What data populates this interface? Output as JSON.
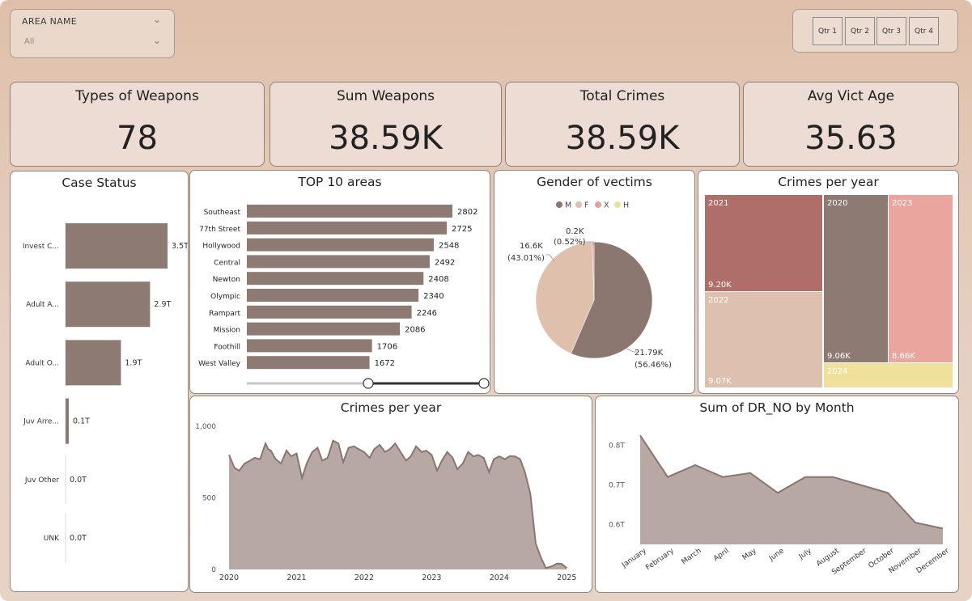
{
  "filter": {
    "label": "AREA NAME",
    "value": "All"
  },
  "quarters": [
    "Qtr 1",
    "Qtr 2",
    "Qtr 3",
    "Qtr 4"
  ],
  "kpis": [
    {
      "title": "Types of Weapons",
      "value": "78"
    },
    {
      "title": "Sum Weapons",
      "value": "38.59K"
    },
    {
      "title": "Total Crimes",
      "value": "38.59K"
    },
    {
      "title": "Avg Vict Age",
      "value": "35.63"
    }
  ],
  "case_status": {
    "title": "Case Status",
    "labels": [
      "Invest C...",
      "Adult A...",
      "Adult O...",
      "Juv Arre...",
      "Juv Other",
      "UNK"
    ],
    "value_labels": [
      "3.5T",
      "2.9T",
      "1.9T",
      "0.1T",
      "0.0T",
      "0.0T"
    ]
  },
  "top_areas": {
    "title": "TOP 10 areas"
  },
  "gender": {
    "title": "Gender of vectims",
    "legend": [
      "M",
      "F",
      "X",
      "H"
    ],
    "legend_colors": [
      "#8b7770",
      "#dec0ac",
      "#e2a2a4",
      "#ece29b"
    ],
    "labels": {
      "m_value": "21.79K",
      "m_pct": "(56.46%)",
      "f_value": "16.6K",
      "f_pct": "(43.01%)",
      "x_value": "0.2K",
      "x_pct": "(0.52%)"
    }
  },
  "treemap": {
    "title": "Crimes per year",
    "cells": [
      {
        "year": "2021",
        "value": "9.20K",
        "color": "#b06e68"
      },
      {
        "year": "2022",
        "value": "9.07K",
        "color": "#dec0af"
      },
      {
        "year": "2020",
        "value": "9.06K",
        "color": "#8d7a72"
      },
      {
        "year": "2023",
        "value": "8.66K",
        "color": "#e9a59e"
      },
      {
        "year": "2024",
        "value": "",
        "color": "#efe09c"
      }
    ]
  },
  "area_chart": {
    "title": "Crimes per year"
  },
  "month_chart": {
    "title": "Sum of DR_NO by Month"
  },
  "chart_data": [
    {
      "type": "bar",
      "title": "Case Status",
      "categories": [
        "Invest C...",
        "Adult A...",
        "Adult O...",
        "Juv Arre...",
        "Juv Other",
        "UNK"
      ],
      "values": [
        3.5,
        2.9,
        1.9,
        0.1,
        0.0,
        0.0
      ],
      "unit": "T"
    },
    {
      "type": "bar",
      "title": "TOP 10 areas",
      "categories": [
        "Southeast",
        "77th Street",
        "Hollywood",
        "Central",
        "Newton",
        "Olympic",
        "Rampart",
        "Mission",
        "Foothill",
        "West Valley"
      ],
      "values": [
        2802,
        2725,
        2548,
        2492,
        2408,
        2340,
        2246,
        2086,
        1706,
        1672
      ],
      "xlim": [
        0,
        2802
      ]
    },
    {
      "type": "pie",
      "title": "Gender of vectims",
      "categories": [
        "M",
        "F",
        "X",
        "H"
      ],
      "values": [
        21.79,
        16.6,
        0.2,
        0.0
      ],
      "unit": "K",
      "colors": [
        "#8b7770",
        "#dec0ac",
        "#e2a2a4",
        "#ece29b"
      ]
    },
    {
      "type": "treemap",
      "title": "Crimes per year",
      "categories": [
        "2021",
        "2022",
        "2020",
        "2023",
        "2024"
      ],
      "values": [
        9.2,
        9.07,
        9.06,
        8.66,
        1.0
      ],
      "unit": "K"
    },
    {
      "type": "area",
      "title": "Crimes per year",
      "xlim": [
        2020,
        2025.08
      ],
      "ylim": [
        0,
        1000
      ],
      "yticks": [
        0,
        500,
        1000
      ],
      "ytick_labels": [
        "0",
        "500",
        "1,000"
      ],
      "xticks": [
        2020,
        2021,
        2022,
        2023,
        2024,
        2025
      ],
      "x": [
        2020.0,
        2020.08,
        2020.15,
        2020.23,
        2020.31,
        2020.38,
        2020.46,
        2020.54,
        2020.58,
        2020.62,
        2020.69,
        2020.77,
        2020.85,
        2020.92,
        2021.0,
        2021.08,
        2021.15,
        2021.23,
        2021.31,
        2021.38,
        2021.46,
        2021.54,
        2021.62,
        2021.69,
        2021.77,
        2021.85,
        2021.92,
        2022.0,
        2022.08,
        2022.15,
        2022.23,
        2022.31,
        2022.38,
        2022.46,
        2022.54,
        2022.62,
        2022.69,
        2022.77,
        2022.85,
        2022.92,
        2023.0,
        2023.08,
        2023.15,
        2023.23,
        2023.31,
        2023.38,
        2023.46,
        2023.54,
        2023.62,
        2023.69,
        2023.77,
        2023.85,
        2023.92,
        2024.0,
        2024.08,
        2024.15,
        2024.23,
        2024.31,
        2024.38,
        2024.46,
        2024.54,
        2024.62,
        2024.69,
        2024.77,
        2024.85,
        2024.92,
        2025.0
      ],
      "values": [
        800,
        710,
        690,
        740,
        760,
        780,
        770,
        880,
        840,
        830,
        770,
        740,
        830,
        790,
        810,
        640,
        740,
        820,
        850,
        760,
        780,
        900,
        880,
        750,
        850,
        860,
        840,
        820,
        780,
        840,
        870,
        820,
        840,
        880,
        820,
        760,
        790,
        860,
        820,
        830,
        800,
        690,
        760,
        820,
        780,
        700,
        740,
        820,
        790,
        800,
        780,
        680,
        770,
        790,
        770,
        790,
        790,
        770,
        680,
        530,
        180,
        80,
        10,
        20,
        40,
        40,
        10
      ]
    },
    {
      "type": "area",
      "title": "Sum of DR_NO by Month",
      "categories": [
        "January",
        "February",
        "March",
        "April",
        "May",
        "June",
        "July",
        "August",
        "September",
        "October",
        "November",
        "December"
      ],
      "values": [
        0.825,
        0.72,
        0.75,
        0.72,
        0.73,
        0.68,
        0.72,
        0.72,
        0.7,
        0.68,
        0.605,
        0.59
      ],
      "ylim": [
        0.55,
        0.85
      ],
      "yticks": [
        0.6,
        0.7,
        0.8
      ],
      "ytick_labels": [
        "0.6T",
        "0.7T",
        "0.8T"
      ]
    }
  ]
}
